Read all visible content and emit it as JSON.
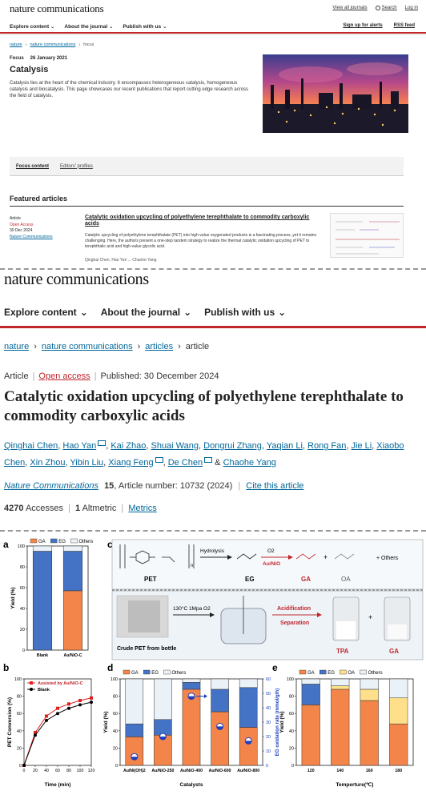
{
  "panel1": {
    "logo": "nature communications",
    "toplinks": [
      "View all journals",
      "Search",
      "Log in"
    ],
    "nav": [
      "Explore content",
      "About the journal",
      "Publish with us"
    ],
    "nav_right": [
      "Sign up for alerts",
      "RSS feed"
    ],
    "breadcrumb": [
      "nature",
      "nature communications",
      "focus"
    ],
    "focus_label": "Focus",
    "focus_date": "26 January 2021",
    "title": "Catalysis",
    "description": "Catalysis lies at the heart of the chemical industry. It encompasses heterogeneous catalysis, homogeneous catalysis and biocatalysis. This page showcases our recent publications that report cutting edge research across the field of catalysis.",
    "tabs": [
      "Focus content",
      "Editors' profiles"
    ],
    "featured_heading": "Featured articles",
    "article_meta": [
      "Article",
      "Open Access",
      "30 Dec 2024",
      "Nature Communications"
    ],
    "article_title": "Catalytic oxidation upcycling of polyethylene terephthalate to commodity carboxylic acids",
    "article_desc": "Catalytic upcycling of polyethylene terephthalate (PET) into high-value oxygenated products is a fascinating process, yet it remains challenging. Here, the authors present a one-step tandem strategy to realize the thermal catalytic oxidation upcycling of PET to terephthalic acid and high-value glycolic acid.",
    "article_authors": "Qinghai Chen, Hao Yan ... Chaohe Yang"
  },
  "panel2": {
    "logo": "nature communications",
    "nav": [
      "Explore content",
      "About the journal",
      "Publish with us"
    ],
    "breadcrumb": [
      "nature",
      "nature communications",
      "articles",
      "article"
    ],
    "type": "Article",
    "access": "Open access",
    "published": "Published: 30 December 2024",
    "title": "Catalytic oxidation upcycling of polyethylene terephthalate to commodity carboxylic acids",
    "authors": [
      {
        "name": "Qinghai Chen",
        "mail": false
      },
      {
        "name": "Hao Yan",
        "mail": true
      },
      {
        "name": "Kai Zhao",
        "mail": false
      },
      {
        "name": "Shuai Wang",
        "mail": false
      },
      {
        "name": "Dongrui Zhang",
        "mail": false
      },
      {
        "name": "Yaqian Li",
        "mail": false
      },
      {
        "name": "Rong Fan",
        "mail": false
      },
      {
        "name": "Jie Li",
        "mail": false
      },
      {
        "name": "Xiaobo Chen",
        "mail": false
      },
      {
        "name": "Xin Zhou",
        "mail": false
      },
      {
        "name": "Yibin Liu",
        "mail": false
      },
      {
        "name": "Xiang Feng",
        "mail": true
      },
      {
        "name": "De Chen",
        "mail": true
      },
      {
        "name": "Chaohe Yang",
        "mail": false
      }
    ],
    "journal": "Nature Communications",
    "volume": "15",
    "article_number": ", Article number: 10732 (2024)",
    "cite": "Cite this article",
    "accesses": "4270",
    "accesses_label": "Accesses",
    "altmetric": "1",
    "altmetric_label": "Altmetric",
    "metrics_link": "Metrics"
  },
  "figure": {
    "labels": [
      "a",
      "b",
      "c",
      "d",
      "e"
    ],
    "scheme": {
      "hydrolysis": "Hydrolysis",
      "o2": "O2",
      "catalyst": "Au/NiO",
      "pet": "PET",
      "eg": "EG",
      "ga": "GA",
      "oa": "OA",
      "others": "+ Others",
      "plus": "+",
      "n": "n",
      "conditions": "130°C  1Mpa O2",
      "acidification": "Acidification",
      "separation": "Separation",
      "crude": "Crude PET from bottle",
      "tpa": "TPA",
      "ga2": "GA"
    }
  },
  "chart_data": [
    {
      "type": "bar",
      "panel": "a",
      "stacked": true,
      "categories": [
        "Blank",
        "Au/NiO-C"
      ],
      "series": [
        {
          "name": "GA",
          "values": [
            0,
            57
          ]
        },
        {
          "name": "EG",
          "values": [
            95,
            38
          ]
        },
        {
          "name": "Others",
          "values": [
            5,
            5
          ]
        }
      ],
      "ylabel": "Yield (%)",
      "ylim": [
        0,
        100
      ],
      "yticks": [
        0,
        20,
        40,
        60,
        80,
        100
      ],
      "colors": {
        "GA": "#f4854a",
        "EG": "#4472c4",
        "Others": "#eaf2f8"
      },
      "legend": "top"
    },
    {
      "type": "line",
      "panel": "b",
      "x": [
        0,
        20,
        40,
        60,
        80,
        100,
        120
      ],
      "series": [
        {
          "name": "Assisted by Au/NiO-C",
          "values": [
            0,
            38,
            57,
            66,
            71,
            75,
            78
          ],
          "color": "#e02020"
        },
        {
          "name": "Blank",
          "values": [
            0,
            35,
            52,
            60,
            66,
            70,
            73
          ],
          "color": "#000000"
        }
      ],
      "xlabel": "Time (min)",
      "ylabel": "PET Conversion (%)",
      "xlim": [
        0,
        120
      ],
      "ylim": [
        0,
        100
      ],
      "xticks": [
        0,
        20,
        40,
        60,
        80,
        100,
        120
      ],
      "yticks": [
        0,
        20,
        40,
        60,
        80,
        100
      ],
      "legend": "top-left"
    },
    {
      "type": "bar",
      "panel": "d",
      "stacked": true,
      "categories": [
        "Au/Ni(OH)2",
        "Au/NiO-250",
        "Au/NiO-400",
        "Au/NiO-600",
        "Au/NiO-800"
      ],
      "series": [
        {
          "name": "GA",
          "values": [
            33,
            35,
            88,
            62,
            44
          ]
        },
        {
          "name": "EG",
          "values": [
            15,
            18,
            8,
            26,
            46
          ]
        },
        {
          "name": "Others",
          "values": [
            52,
            47,
            4,
            12,
            10
          ]
        }
      ],
      "secondary_series": {
        "name": "EG oxidation rate",
        "values": [
          6,
          20,
          48,
          27,
          17
        ],
        "ylim": [
          0,
          60
        ],
        "yticks": [
          0,
          10,
          20,
          30,
          40,
          50,
          60
        ]
      },
      "xlabel": "Catalysts",
      "ylabel": "Yield (%)",
      "ylabel2": "EG oxidation rate (mmol/g/h)",
      "ylim": [
        0,
        100
      ],
      "yticks": [
        0,
        20,
        40,
        60,
        80,
        100
      ],
      "colors": {
        "GA": "#f4854a",
        "EG": "#4472c4",
        "Others": "#eaf2f8"
      },
      "legend": "top"
    },
    {
      "type": "bar",
      "panel": "e",
      "stacked": true,
      "categories": [
        "120",
        "140",
        "160",
        "180"
      ],
      "series": [
        {
          "name": "GA",
          "values": [
            70,
            88,
            75,
            48
          ]
        },
        {
          "name": "EG",
          "values": [
            24,
            0,
            0,
            0
          ]
        },
        {
          "name": "OA",
          "values": [
            0,
            4,
            13,
            30
          ]
        },
        {
          "name": "Others",
          "values": [
            6,
            8,
            12,
            22
          ]
        }
      ],
      "xlabel": "Temperture(℃)",
      "ylabel": "Yield (%)",
      "ylim": [
        0,
        100
      ],
      "yticks": [
        0,
        20,
        40,
        60,
        80,
        100
      ],
      "colors": {
        "GA": "#f4854a",
        "EG": "#4472c4",
        "OA": "#ffe08a",
        "Others": "#eaf2f8"
      },
      "legend": "top"
    }
  ]
}
